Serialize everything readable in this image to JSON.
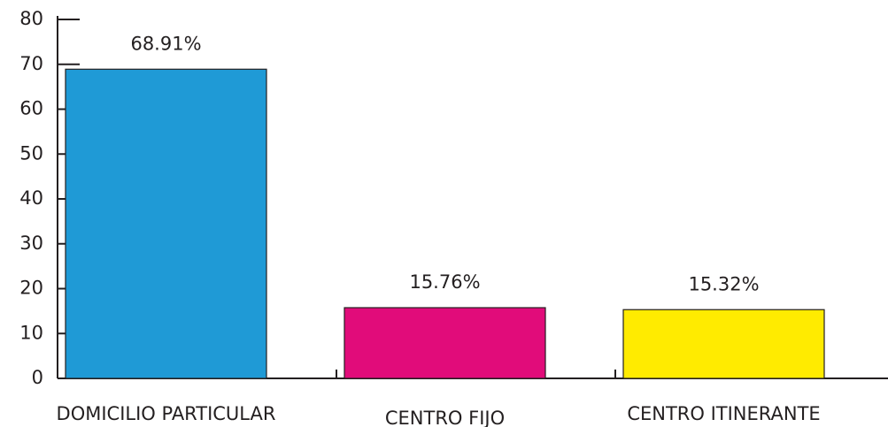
{
  "chart_data": {
    "type": "bar",
    "categories": [
      "DOMICILIO PARTICULAR",
      "CENTRO FIJO",
      "CENTRO ITINERANTE"
    ],
    "values": [
      68.91,
      15.76,
      15.32
    ],
    "value_labels": [
      "68.91%",
      "15.76%",
      "15.32%"
    ],
    "colors": [
      "#1f9ad6",
      "#e10c7a",
      "#ffeb00"
    ],
    "ylim": [
      0,
      80
    ],
    "yticks": [
      0,
      10,
      20,
      30,
      40,
      50,
      60,
      70,
      80
    ],
    "grid": false
  }
}
